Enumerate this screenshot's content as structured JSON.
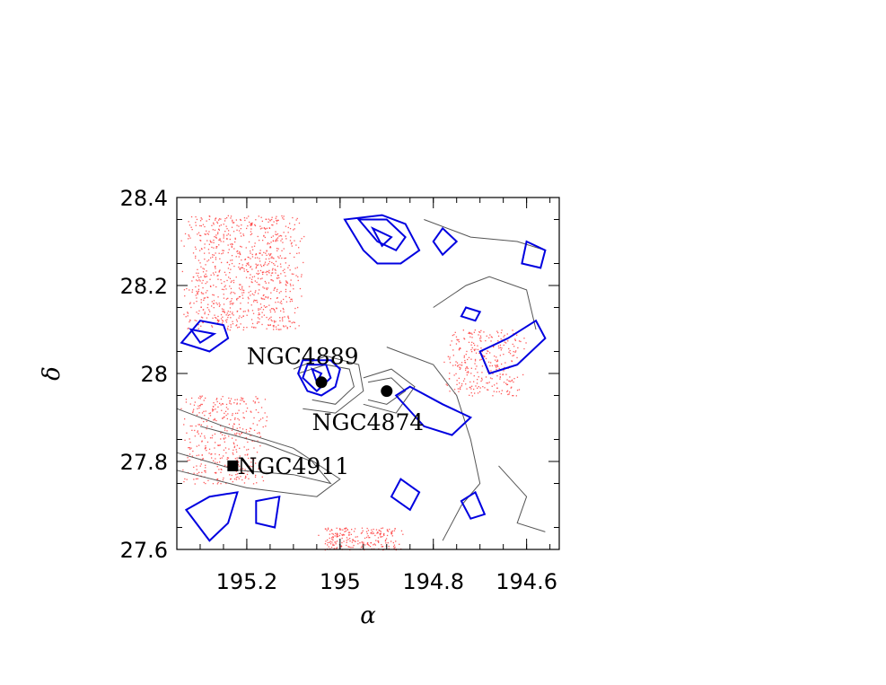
{
  "chart_data": {
    "type": "scatter",
    "title": "",
    "xlabel": "α",
    "ylabel": "δ",
    "xlim": [
      195.35,
      194.53
    ],
    "ylim": [
      27.6,
      28.4
    ],
    "x_reversed": true,
    "xticks": [
      195.2,
      195,
      194.8,
      194.6
    ],
    "xtick_labels": [
      "195.2",
      "195",
      "194.8",
      "194.6"
    ],
    "yticks": [
      27.6,
      27.8,
      28,
      28.2,
      28.4
    ],
    "ytick_labels": [
      "27.6",
      "27.8",
      "28",
      "28.2",
      "28.4"
    ],
    "grid": false,
    "legend": "none",
    "colors": {
      "scatter": "#ff4040",
      "blue_contours": "#0000e0",
      "black_contours": "#555555",
      "markers": "#000000"
    },
    "galaxies": [
      {
        "name": "NGC4889",
        "ra": 195.04,
        "dec": 27.98,
        "marker": "circle",
        "label_ra": 195.2,
        "label_dec": 28.04
      },
      {
        "name": "NGC4874",
        "ra": 194.9,
        "dec": 27.96,
        "marker": "circle",
        "label_ra": 195.06,
        "label_dec": 27.89
      },
      {
        "name": "NGC4911",
        "ra": 195.23,
        "dec": 27.79,
        "marker": "square",
        "label_ra": 195.22,
        "label_dec": 27.79
      }
    ],
    "density_regions": [
      {
        "ra": [
          195.35,
          195.07
        ],
        "dec": [
          28.1,
          28.36
        ],
        "density": 1.0
      },
      {
        "ra": [
          195.35,
          195.15
        ],
        "dec": [
          27.75,
          27.95
        ],
        "density": 0.45
      },
      {
        "ra": [
          194.78,
          194.6
        ],
        "dec": [
          27.95,
          28.1
        ],
        "density": 0.35
      },
      {
        "ra": [
          195.05,
          194.86
        ],
        "dec": [
          27.6,
          27.65
        ],
        "density": 0.25
      }
    ],
    "blue_contours": [
      [
        [
          195.3,
          28.12
        ],
        [
          195.25,
          28.11
        ],
        [
          195.24,
          28.08
        ],
        [
          195.28,
          28.05
        ],
        [
          195.34,
          28.07
        ]
      ],
      [
        [
          195.32,
          28.1
        ],
        [
          195.27,
          28.09
        ],
        [
          195.3,
          28.07
        ]
      ],
      [
        [
          195.08,
          28.03
        ],
        [
          195.02,
          28.03
        ],
        [
          195.0,
          28.01
        ],
        [
          195.01,
          27.97
        ],
        [
          195.04,
          27.95
        ],
        [
          195.07,
          27.96
        ],
        [
          195.09,
          28.0
        ]
      ],
      [
        [
          195.07,
          28.02
        ],
        [
          195.03,
          28.02
        ],
        [
          195.02,
          27.99
        ],
        [
          195.05,
          27.96
        ],
        [
          195.08,
          27.99
        ]
      ],
      [
        [
          195.06,
          28.01
        ],
        [
          195.04,
          28.0
        ],
        [
          195.05,
          27.98
        ]
      ],
      [
        [
          194.99,
          28.35
        ],
        [
          194.95,
          28.28
        ],
        [
          194.92,
          28.25
        ],
        [
          194.87,
          28.25
        ],
        [
          194.83,
          28.28
        ],
        [
          194.86,
          28.34
        ],
        [
          194.91,
          28.36
        ]
      ],
      [
        [
          194.96,
          28.35
        ],
        [
          194.92,
          28.3
        ],
        [
          194.88,
          28.28
        ],
        [
          194.86,
          28.31
        ],
        [
          194.9,
          28.35
        ]
      ],
      [
        [
          194.93,
          28.33
        ],
        [
          194.89,
          28.31
        ],
        [
          194.91,
          28.29
        ]
      ],
      [
        [
          194.78,
          28.33
        ],
        [
          194.75,
          28.3
        ],
        [
          194.78,
          28.27
        ],
        [
          194.8,
          28.3
        ]
      ],
      [
        [
          194.73,
          28.15
        ],
        [
          194.7,
          28.14
        ],
        [
          194.71,
          28.12
        ],
        [
          194.74,
          28.13
        ]
      ],
      [
        [
          194.6,
          28.3
        ],
        [
          194.56,
          28.28
        ],
        [
          194.57,
          28.24
        ],
        [
          194.61,
          28.25
        ]
      ],
      [
        [
          194.7,
          28.05
        ],
        [
          194.64,
          28.08
        ],
        [
          194.58,
          28.12
        ],
        [
          194.56,
          28.08
        ],
        [
          194.62,
          28.02
        ],
        [
          194.68,
          28.0
        ]
      ],
      [
        [
          194.85,
          27.97
        ],
        [
          194.78,
          27.93
        ],
        [
          194.72,
          27.9
        ],
        [
          194.76,
          27.86
        ],
        [
          194.82,
          27.88
        ],
        [
          194.88,
          27.95
        ]
      ],
      [
        [
          194.87,
          27.76
        ],
        [
          194.83,
          27.73
        ],
        [
          194.85,
          27.69
        ],
        [
          194.89,
          27.72
        ]
      ],
      [
        [
          194.71,
          27.73
        ],
        [
          194.69,
          27.68
        ],
        [
          194.72,
          27.67
        ],
        [
          194.74,
          27.71
        ]
      ],
      [
        [
          195.33,
          27.69
        ],
        [
          195.28,
          27.72
        ],
        [
          195.22,
          27.73
        ],
        [
          195.24,
          27.66
        ],
        [
          195.28,
          27.62
        ]
      ],
      [
        [
          195.18,
          27.71
        ],
        [
          195.13,
          27.72
        ],
        [
          195.14,
          27.65
        ],
        [
          195.18,
          27.66
        ]
      ]
    ],
    "black_contours": [
      [
        [
          195.09,
          28.0
        ],
        [
          195.03,
          28.02
        ],
        [
          194.98,
          28.01
        ],
        [
          194.97,
          27.97
        ],
        [
          195.01,
          27.93
        ],
        [
          195.06,
          27.94
        ]
      ],
      [
        [
          195.1,
          28.01
        ],
        [
          195.03,
          28.04
        ],
        [
          194.96,
          28.02
        ],
        [
          194.95,
          27.96
        ],
        [
          195.01,
          27.91
        ],
        [
          195.08,
          27.92
        ]
      ],
      [
        [
          194.94,
          27.98
        ],
        [
          194.89,
          27.99
        ],
        [
          194.86,
          27.96
        ],
        [
          194.9,
          27.93
        ],
        [
          194.94,
          27.94
        ]
      ],
      [
        [
          194.95,
          27.99
        ],
        [
          194.89,
          28.01
        ],
        [
          194.84,
          27.97
        ],
        [
          194.88,
          27.91
        ],
        [
          194.95,
          27.93
        ]
      ],
      [
        [
          195.35,
          27.82
        ],
        [
          195.22,
          27.78
        ],
        [
          195.1,
          27.77
        ],
        [
          195.02,
          27.75
        ],
        [
          195.06,
          27.8
        ],
        [
          195.16,
          27.84
        ],
        [
          195.3,
          27.88
        ]
      ],
      [
        [
          195.35,
          27.78
        ],
        [
          195.2,
          27.74
        ],
        [
          195.05,
          27.72
        ],
        [
          195.0,
          27.76
        ],
        [
          195.1,
          27.83
        ],
        [
          195.25,
          27.88
        ],
        [
          195.35,
          27.92
        ]
      ],
      [
        [
          194.82,
          28.35
        ],
        [
          194.72,
          28.31
        ],
        [
          194.62,
          28.3
        ],
        [
          194.56,
          28.28
        ]
      ],
      [
        [
          194.8,
          28.15
        ],
        [
          194.73,
          28.2
        ],
        [
          194.68,
          28.22
        ],
        [
          194.6,
          28.19
        ],
        [
          194.58,
          28.1
        ]
      ],
      [
        [
          194.9,
          28.06
        ],
        [
          194.8,
          28.02
        ],
        [
          194.75,
          27.95
        ],
        [
          194.72,
          27.85
        ],
        [
          194.7,
          27.75
        ],
        [
          194.74,
          27.7
        ],
        [
          194.78,
          27.62
        ]
      ],
      [
        [
          194.66,
          27.79
        ],
        [
          194.6,
          27.72
        ],
        [
          194.62,
          27.66
        ],
        [
          194.56,
          27.64
        ]
      ]
    ],
    "scatter_points": []
  }
}
